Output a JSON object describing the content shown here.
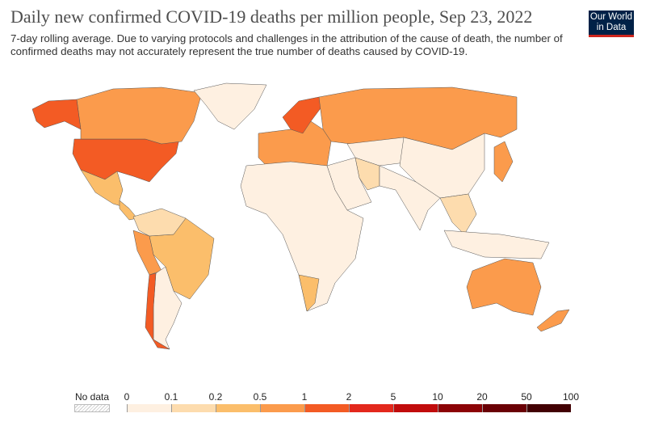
{
  "header": {
    "title": "Daily new confirmed COVID-19 deaths per million people, Sep 23, 2022",
    "subtitle": "7-day rolling average. Due to varying protocols and challenges in the attribution of the cause of death, the number of confirmed deaths may not accurately represent the true number of deaths caused by COVID-19.",
    "logo": "Our World in Data"
  },
  "legend": {
    "no_data_label": "No data",
    "ticks": [
      "0",
      "0.1",
      "0.2",
      "0.5",
      "1",
      "2",
      "5",
      "10",
      "20",
      "50",
      "100"
    ],
    "colors": [
      "#fef0e1",
      "#fddcae",
      "#fbbe6b",
      "#fb9b4c",
      "#f35b24",
      "#e3281c",
      "#c10c0c",
      "#8c0306",
      "#6a0005",
      "#420003"
    ]
  },
  "map": {
    "regions": [
      {
        "name": "United States",
        "bin": 4
      },
      {
        "name": "Canada",
        "bin": 3
      },
      {
        "name": "Alaska",
        "bin": 4
      },
      {
        "name": "Greenland",
        "bin": 0
      },
      {
        "name": "Mexico",
        "bin": 2
      },
      {
        "name": "Central America",
        "bin": 2
      },
      {
        "name": "Brazil",
        "bin": 2
      },
      {
        "name": "Peru",
        "bin": 3
      },
      {
        "name": "Argentina",
        "bin": 0
      },
      {
        "name": "Chile",
        "bin": 4
      },
      {
        "name": "Northern South America",
        "bin": 1
      },
      {
        "name": "Europe",
        "bin": 3
      },
      {
        "name": "Scandinavia",
        "bin": 4
      },
      {
        "name": "Russia",
        "bin": 3
      },
      {
        "name": "Africa",
        "bin": 0
      },
      {
        "name": "Southern Africa",
        "bin": 2
      },
      {
        "name": "Middle East",
        "bin": 0
      },
      {
        "name": "Iran",
        "bin": 1
      },
      {
        "name": "Central Asia",
        "bin": 0
      },
      {
        "name": "China",
        "bin": 0
      },
      {
        "name": "India",
        "bin": 0
      },
      {
        "name": "Southeast Asia",
        "bin": 1
      },
      {
        "name": "Japan",
        "bin": 3
      },
      {
        "name": "Indonesia",
        "bin": 0
      },
      {
        "name": "Australia",
        "bin": 3
      },
      {
        "name": "New Zealand",
        "bin": 3
      }
    ]
  }
}
